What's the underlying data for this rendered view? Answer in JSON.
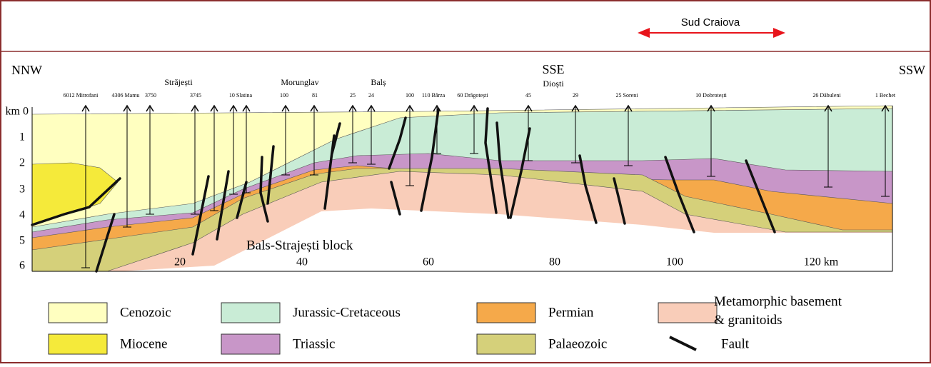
{
  "header": {
    "region": "Sud Craiova"
  },
  "section": {
    "left": "NNW",
    "middle": "SSE",
    "right": "SSW",
    "block": "Bals-Strajești block",
    "towns": [
      "Străjești",
      "Morunglav",
      "Balș",
      "Dioști"
    ],
    "wells": [
      "6012 Mitrofani",
      "4306 Mamu",
      "3750",
      "3745",
      "10 Slatina",
      "100",
      "81",
      "25",
      "24",
      "100",
      "110 Bârza",
      "60 Drăgotești",
      "45",
      "29",
      "25 Soreni",
      "10 Dobrotești",
      "26 Dăbuleni",
      "1 Bechet"
    ],
    "depths": [
      "km 0",
      "1",
      "2",
      "3",
      "4",
      "5",
      "6"
    ],
    "distances": [
      "20",
      "40",
      "60",
      "80",
      "100",
      "120 km"
    ]
  },
  "legend": [
    "Cenozoic",
    "Jurassic-Cretaceous",
    "Permian",
    "Metamorphic basement & granitoids",
    "Miocene",
    "Triassic",
    "Palaeozoic",
    "Fault"
  ]
}
